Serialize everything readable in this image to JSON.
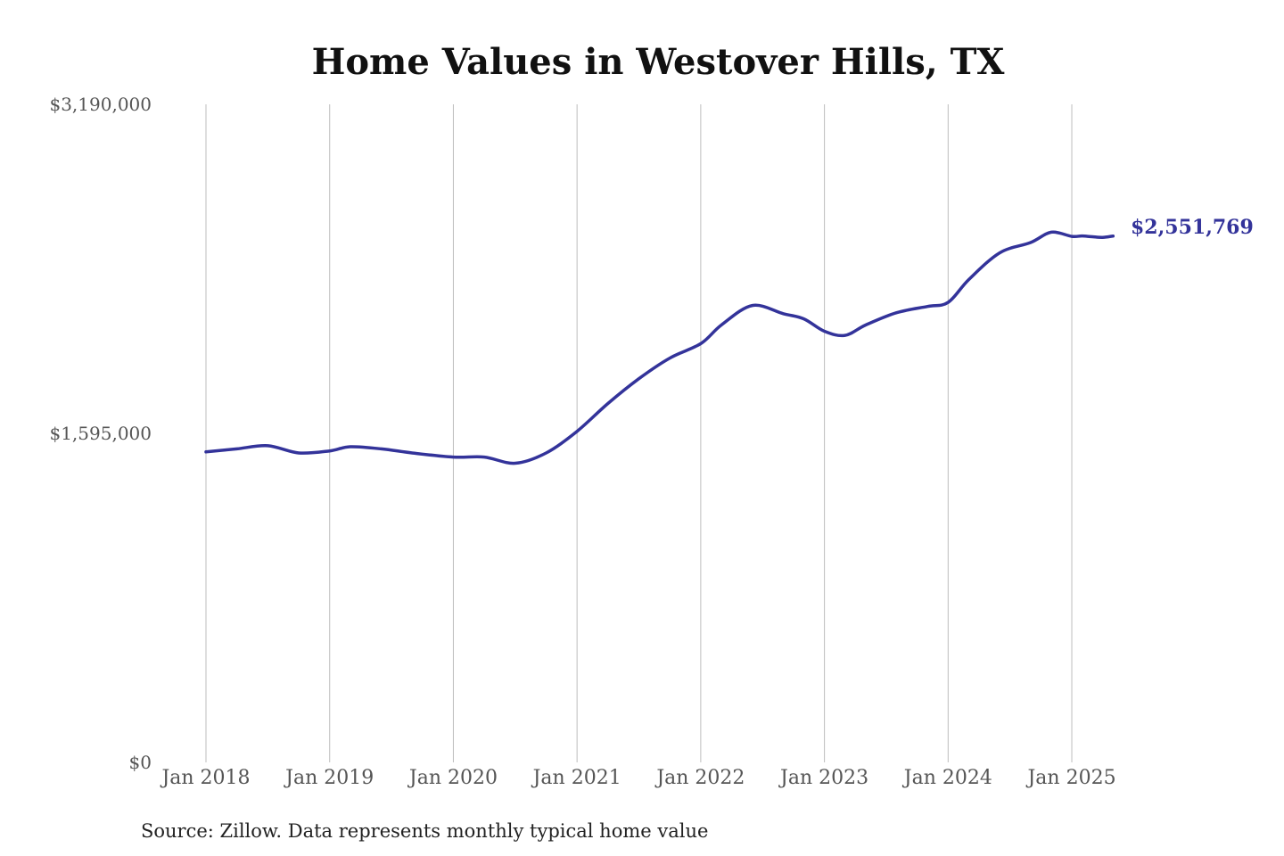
{
  "chart_data": {
    "type": "line",
    "title": "Home Values in Westover Hills, TX",
    "source_note": "Source: Zillow. Data represents monthly typical home value",
    "ylim": [
      0,
      3190000
    ],
    "y_ticks": [
      0,
      1595000,
      3190000
    ],
    "y_tick_labels": [
      "$0",
      "$1,595,000",
      "$3,190,000"
    ],
    "x_ticks": [
      "2018-01",
      "2019-01",
      "2020-01",
      "2021-01",
      "2022-01",
      "2023-01",
      "2024-01",
      "2025-01"
    ],
    "x_tick_labels": [
      "Jan 2018",
      "Jan 2019",
      "Jan 2020",
      "Jan 2021",
      "Jan 2022",
      "Jan 2023",
      "Jan 2024",
      "Jan 2025"
    ],
    "grid": "vertical",
    "line_color": "#33339a",
    "end_label": "$2,551,769",
    "series": [
      {
        "x": [
          "2018-01",
          "2018-04",
          "2018-07",
          "2018-10",
          "2019-01",
          "2019-03",
          "2019-06",
          "2019-09",
          "2020-01",
          "2020-04",
          "2020-07",
          "2020-10",
          "2021-01",
          "2021-04",
          "2021-07",
          "2021-10",
          "2022-01",
          "2022-03",
          "2022-06",
          "2022-09",
          "2022-11",
          "2023-01",
          "2023-03",
          "2023-05",
          "2023-08",
          "2023-11",
          "2024-01",
          "2024-03",
          "2024-06",
          "2024-09",
          "2024-11",
          "2025-01",
          "2025-02",
          "2025-03",
          "2025-04",
          "2025-05"
        ],
        "values": [
          1505000,
          1520000,
          1535000,
          1500000,
          1510000,
          1530000,
          1520000,
          1500000,
          1480000,
          1480000,
          1450000,
          1500000,
          1605000,
          1740000,
          1860000,
          1960000,
          2030000,
          2120000,
          2215000,
          2175000,
          2150000,
          2090000,
          2070000,
          2120000,
          2180000,
          2210000,
          2230000,
          2340000,
          2470000,
          2520000,
          2570000,
          2550000,
          2552000,
          2548000,
          2545000,
          2551769
        ]
      }
    ]
  }
}
